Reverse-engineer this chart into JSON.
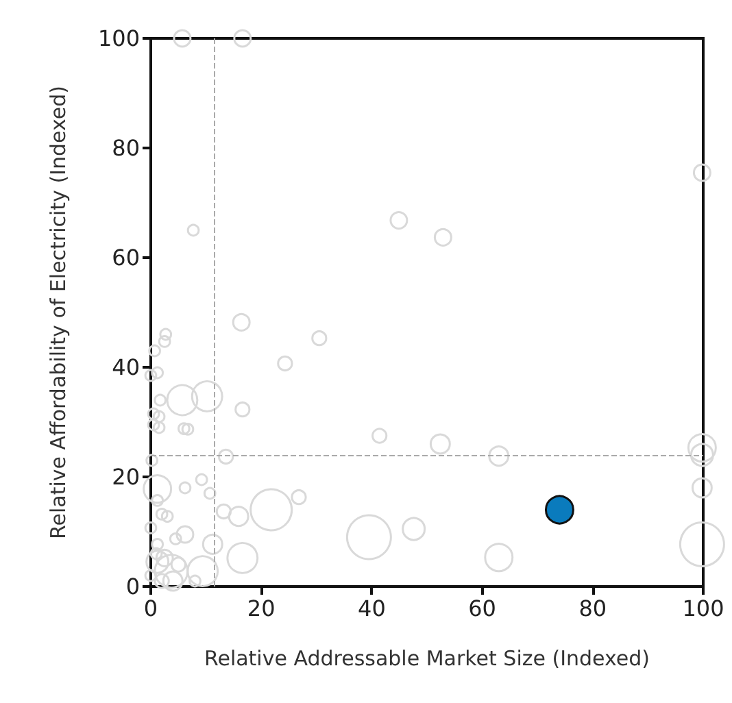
{
  "chart_data": {
    "type": "bubble",
    "xlabel": "Relative Addressable Market Size (Indexed)",
    "ylabel": "Relative Affordability of Electricity (Indexed)",
    "xlim": [
      0,
      100
    ],
    "ylim": [
      0,
      100
    ],
    "xticks": [
      0,
      20,
      40,
      60,
      80,
      100
    ],
    "yticks": [
      0,
      20,
      40,
      60,
      80,
      100
    ],
    "grid": false,
    "marker": "circle",
    "ref_lines": [
      {
        "axis": "x",
        "value": 11.6,
        "color": "#aaaaaa",
        "line_style": "dashed"
      },
      {
        "axis": "y",
        "value": 24,
        "color": "#aaaaaa",
        "line_style": "dashed"
      }
    ],
    "series": [
      {
        "color": "#d9d9d9",
        "x": [
          44.9,
          52.9,
          30.5,
          24.3,
          41.4,
          52.4,
          63,
          99.8,
          99.8,
          99.8,
          26.8,
          21.8,
          39.5,
          47.6,
          63,
          99.8,
          99.8,
          5.7,
          16.6,
          7.7,
          16.4,
          2.7,
          2.5,
          0.7,
          1.2,
          0,
          1.7,
          5.7,
          10.2,
          16.6,
          0.5,
          1.5,
          0.5,
          1.5,
          6,
          6.7,
          13.6,
          0.2,
          1.2,
          9.2,
          6.2,
          10.7,
          1.2,
          2,
          3,
          13.2,
          15.9,
          0,
          6.2,
          4.5,
          1.2,
          11.2,
          16.6,
          9.4,
          3.7,
          1.2,
          0,
          2.5,
          2,
          5,
          8,
          1,
          4
        ],
        "values": [
          66.8,
          63.7,
          45.3,
          40.7,
          27.5,
          26,
          23.8,
          25.3,
          24,
          18,
          16.3,
          14,
          9,
          10.5,
          5.3,
          7.7,
          75.5,
          100,
          100,
          65,
          48.2,
          46,
          44.7,
          43,
          39,
          38.5,
          34,
          34,
          34.7,
          32.3,
          31.5,
          31,
          29.5,
          29,
          28.8,
          28.7,
          23.7,
          23,
          17.8,
          19.5,
          18,
          17,
          15.7,
          13.2,
          12.8,
          13.7,
          12.8,
          10.7,
          9.5,
          8.7,
          7.7,
          7.7,
          5.2,
          2.8,
          2.8,
          4.5,
          2,
          5.2,
          1,
          4,
          1,
          6,
          1
        ],
        "sizes": [
          0.14,
          0.14,
          0.1,
          0.1,
          0.1,
          0.19,
          0.19,
          0.39,
          0.25,
          0.19,
          0.1,
          0.88,
          1,
          0.25,
          0.39,
          1,
          0.14,
          0.14,
          0.14,
          0.06,
          0.14,
          0.06,
          0.06,
          0.06,
          0.06,
          0.06,
          0.06,
          0.47,
          0.47,
          0.1,
          0.06,
          0.06,
          0.06,
          0.06,
          0.06,
          0.06,
          0.1,
          0.06,
          0.39,
          0.06,
          0.06,
          0.06,
          0.06,
          0.06,
          0.06,
          0.1,
          0.19,
          0.06,
          0.14,
          0.06,
          0.06,
          0.19,
          0.47,
          0.47,
          0.56,
          0.25,
          0.06,
          0.14,
          0.1,
          0.1,
          0.06,
          0.06,
          0.19
        ]
      },
      {
        "color": "#0a7bbd",
        "x": [
          74
        ],
        "values": [
          14
        ],
        "sizes": [
          0.39
        ]
      }
    ]
  }
}
